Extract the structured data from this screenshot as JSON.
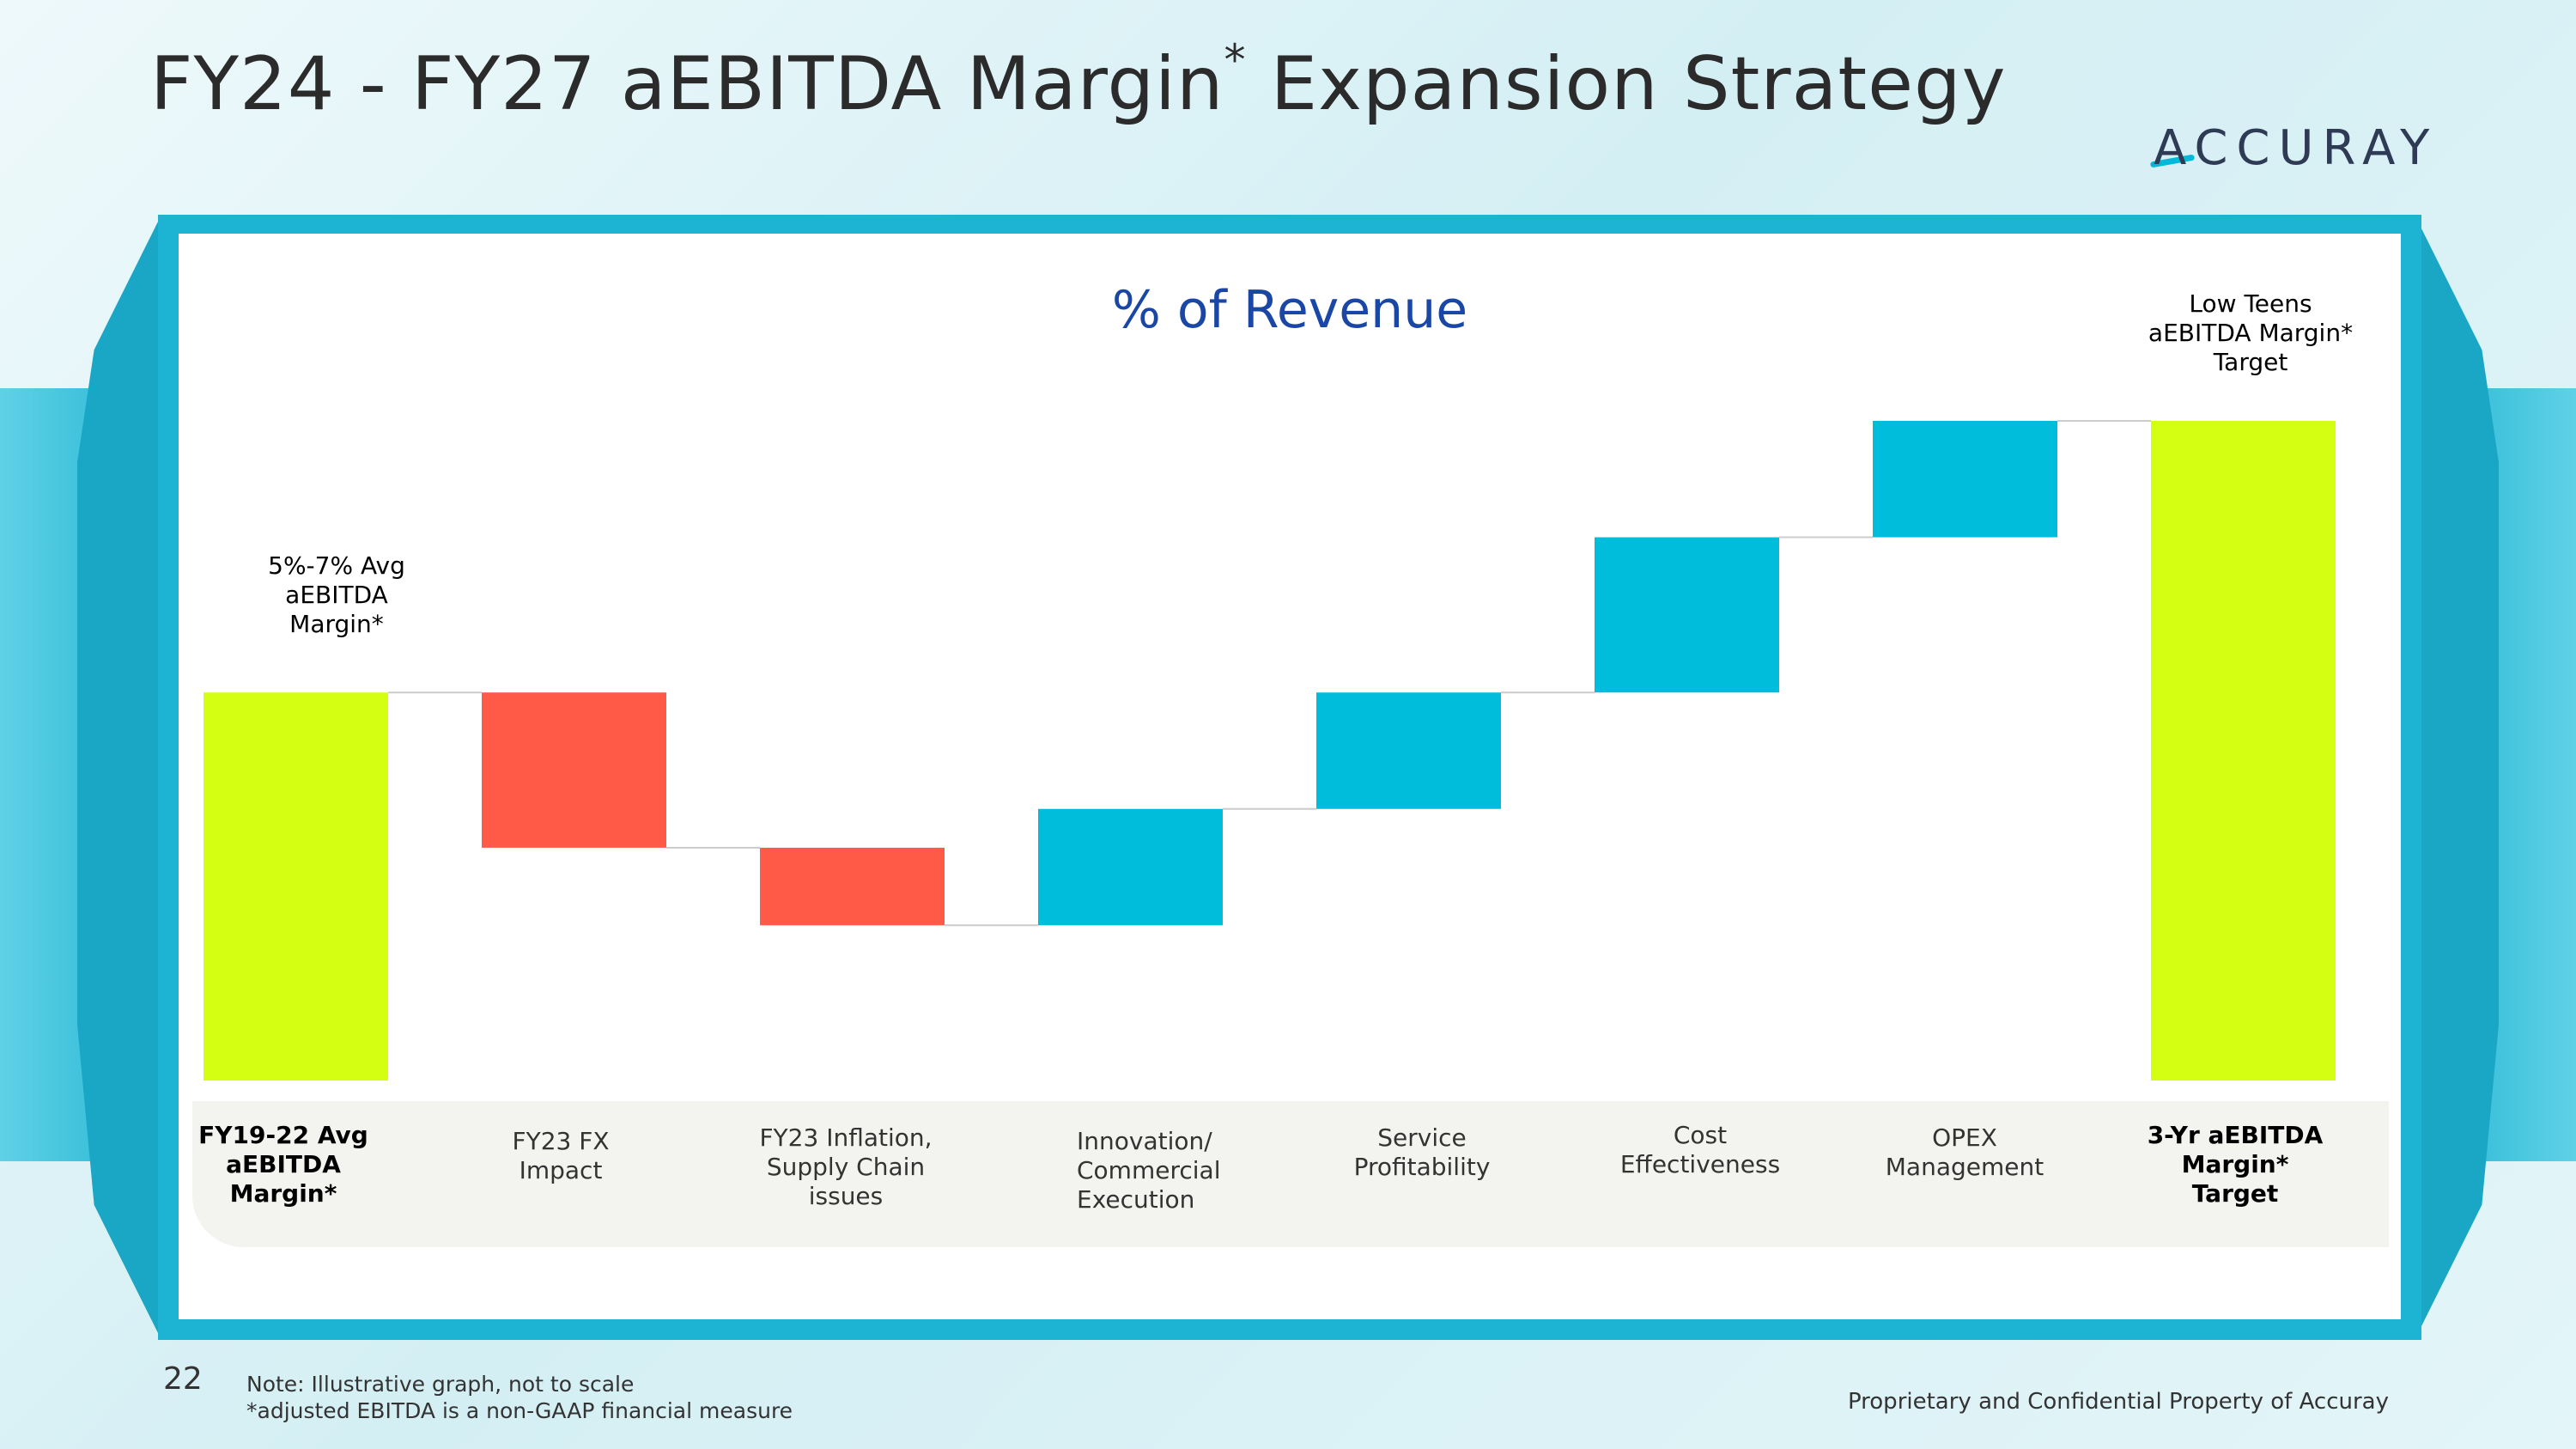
{
  "slide": {
    "title_main": "FY24 - FY27 aEBITDA Margin",
    "title_sup": "*",
    "title_tail": " Expansion Strategy",
    "logo_text": "ACCURAY",
    "page_number": "22",
    "note_line1": "Note:  Illustrative graph, not to scale",
    "note_line2": "*adjusted EBITDA is a non-GAAP financial measure",
    "footer": "Proprietary and Confidential Property of Accuray"
  },
  "colors": {
    "total": "#d4ff12",
    "decrease": "#ff5a48",
    "increase": "#00bedb",
    "connector": "#cccccc",
    "title": "#1a47a6"
  },
  "chart_data": {
    "type": "waterfall",
    "title": "% of Revenue",
    "ylabel": "% of Revenue",
    "ylim": [
      0,
      13
    ],
    "categories": [
      "FY19-22 Avg\naEBITDA\nMargin*",
      "FY23 FX\nImpact",
      "FY23 Inflation,\nSupply Chain\nissues",
      "Innovation/\nCommercial\nExecution",
      "Service\nProfitability",
      "Cost\nEffectiveness",
      "OPEX\nManagement",
      "3-Yr aEBITDA\nMargin*\nTarget"
    ],
    "kinds": [
      "total",
      "decrease",
      "decrease",
      "increase",
      "increase",
      "increase",
      "increase",
      "total"
    ],
    "values": [
      7.5,
      -3.0,
      -1.5,
      2.25,
      2.25,
      3.0,
      2.25,
      12.75
    ],
    "annotations": [
      {
        "category_index": 0,
        "text": "5%-7% Avg\naEBITDA\nMargin*"
      },
      {
        "category_index": 7,
        "text": "Low Teens\naEBITDA Margin*\nTarget"
      }
    ],
    "note": "Illustrative graph, not to scale"
  }
}
